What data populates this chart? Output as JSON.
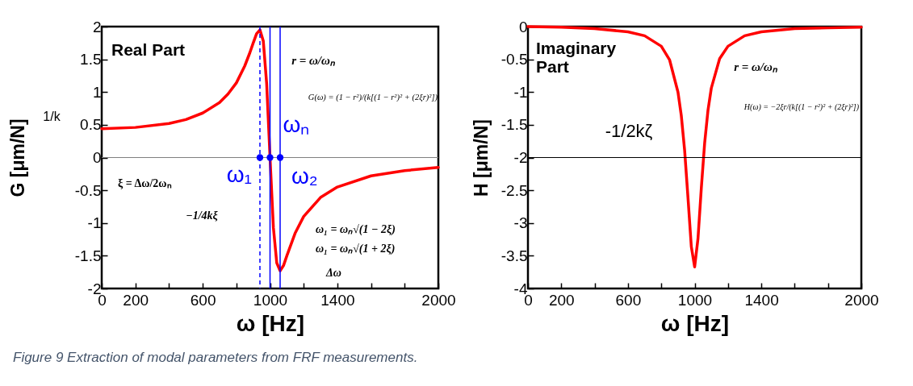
{
  "chart_data": [
    {
      "type": "line",
      "xlabel": "ω [Hz]",
      "ylabel": "G [μm/N]",
      "x": [
        0,
        200,
        400,
        500,
        600,
        700,
        750,
        800,
        850,
        880,
        900,
        920,
        940,
        960,
        980,
        1000,
        1020,
        1040,
        1060,
        1080,
        1100,
        1150,
        1200,
        1300,
        1400,
        1600,
        1800,
        2000
      ],
      "series": [
        {
          "color": "#ff0000",
          "values": [
            0.44,
            0.46,
            0.52,
            0.58,
            0.68,
            0.84,
            0.97,
            1.14,
            1.4,
            1.6,
            1.75,
            1.89,
            1.95,
            1.78,
            1.13,
            0,
            -1.07,
            -1.61,
            -1.73,
            -1.65,
            -1.5,
            -1.15,
            -0.9,
            -0.61,
            -0.45,
            -0.28,
            -0.2,
            -0.15
          ]
        },
        {
          "type": "scatter",
          "color": "#0000ff",
          "x": [
            940,
            1000,
            1060
          ],
          "values": [
            0,
            0,
            0
          ]
        }
      ],
      "xlim": [
        0,
        2000
      ],
      "xticks": [
        0,
        200,
        {
          "value": 400,
          "label": null
        },
        600,
        {
          "value": 800,
          "label": null
        },
        1000,
        {
          "value": 1200,
          "label": null
        },
        1400,
        {
          "value": 1600,
          "label": null
        },
        {
          "value": 1800,
          "label": null
        },
        2000
      ],
      "ylim": [
        -2,
        2
      ],
      "yticks": [
        -2,
        -1.5,
        -1,
        -0.5,
        0,
        0.5,
        1,
        1.5,
        2
      ],
      "ref_lines": [
        {
          "axis": "y",
          "value": 0,
          "color": "#808080"
        },
        {
          "axis": "x",
          "value": 940,
          "color": "#0000ff",
          "line_style": "dashed"
        },
        {
          "axis": "x",
          "value": 1000,
          "color": "#0000ff",
          "line_style": "solid"
        },
        {
          "axis": "x",
          "value": 1060,
          "color": "#0000ff",
          "line_style": "solid"
        }
      ],
      "annotations": [
        "Real Part",
        "r = ω/ωₙ",
        "G(ω) = (1 − r²)/(k[(1 − r²)² + (2ξr)²])",
        {
          "text": "ωₙ",
          "x": 1000,
          "y": 0
        },
        {
          "text": "ω₁",
          "x": 940,
          "y": 0
        },
        {
          "text": "ω₂",
          "x": 1060,
          "y": 0
        },
        "ξ = Δω/2ωₙ",
        "−1/4kξ",
        "ω₁ = ωₙ√(1 − 2ξ)",
        "ω₁ = ωₙ√(1 + 2ξ)",
        "Δω",
        "1/k",
        "Figure 9 Extraction of modal parameters from FRF measurements."
      ]
    },
    {
      "type": "line",
      "xlabel": "ω [Hz]",
      "ylabel": "H [μm/N]",
      "x": [
        0,
        200,
        400,
        600,
        700,
        800,
        850,
        900,
        920,
        940,
        960,
        980,
        1000,
        1020,
        1040,
        1060,
        1080,
        1100,
        1150,
        1200,
        1300,
        1400,
        1600,
        1800,
        2000
      ],
      "series": [
        {
          "color": "#ff0000",
          "values": [
            0,
            -0.01,
            -0.03,
            -0.08,
            -0.14,
            -0.3,
            -0.51,
            -1,
            -1.36,
            -1.89,
            -2.61,
            -3.36,
            -3.67,
            -3.24,
            -2.47,
            -1.78,
            -1.28,
            -0.94,
            -0.49,
            -0.3,
            -0.14,
            -0.08,
            -0.03,
            -0.02,
            -0.01
          ]
        }
      ],
      "xlim": [
        0,
        2000
      ],
      "xticks": [
        0,
        200,
        {
          "value": 400,
          "label": null
        },
        600,
        {
          "value": 800,
          "label": null
        },
        1000,
        {
          "value": 1200,
          "label": null
        },
        1400,
        {
          "value": 1600,
          "label": null
        },
        {
          "value": 1800,
          "label": null
        },
        2000
      ],
      "ylim": [
        -4,
        0
      ],
      "yticks": [
        -4,
        -3.5,
        -3,
        -2.5,
        -2,
        -1.5,
        -1,
        -0.5,
        0
      ],
      "ref_lines": [
        {
          "axis": "y",
          "value": -2,
          "color": "#000000"
        }
      ],
      "annotations": [
        "Imaginary Part",
        "r = ω/ωₙ",
        "H(ω) = −2ξr/(k[(1 − r²)² + (2ξr)²])",
        "-1/2kζ"
      ]
    }
  ]
}
